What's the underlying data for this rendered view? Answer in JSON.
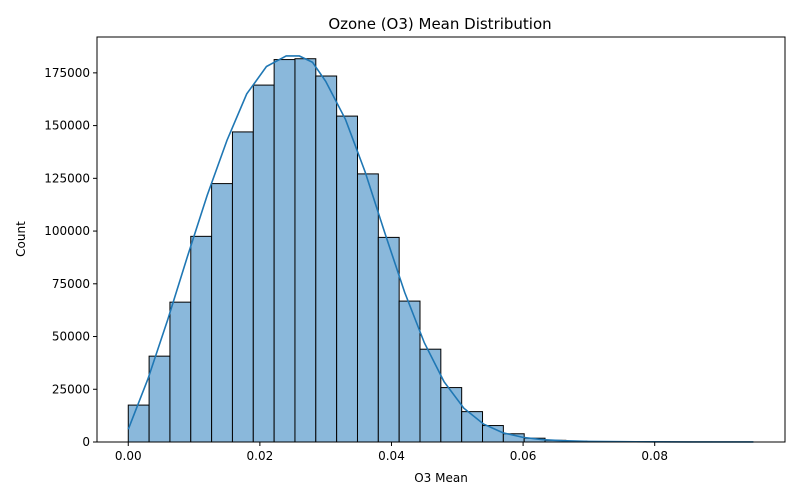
{
  "chart_data": {
    "type": "bar",
    "title": "Ozone (O3) Mean Distribution",
    "xlabel": "O3 Mean",
    "ylabel": "Count",
    "xlim": [
      -0.00475,
      0.0998
    ],
    "ylim": [
      0,
      192000
    ],
    "xticks": [
      0.0,
      0.02,
      0.04,
      0.06,
      0.08
    ],
    "xtick_labels": [
      "0.00",
      "0.02",
      "0.04",
      "0.06",
      "0.08"
    ],
    "yticks": [
      0,
      25000,
      50000,
      75000,
      100000,
      125000,
      150000,
      175000
    ],
    "ytick_labels": [
      "0",
      "25000",
      "50000",
      "75000",
      "100000",
      "125000",
      "150000",
      "175000"
    ],
    "bin_width": 0.003167,
    "bin_starts": [
      0.0,
      0.003167,
      0.006333,
      0.0095,
      0.012667,
      0.015833,
      0.019,
      0.022167,
      0.025333,
      0.0285,
      0.031667,
      0.034833,
      0.038,
      0.041167,
      0.044333,
      0.0475,
      0.050667,
      0.053833,
      0.057,
      0.060167,
      0.063333,
      0.0665,
      0.069667,
      0.072833,
      0.076,
      0.079167,
      0.082333,
      0.0855,
      0.088667,
      0.091833
    ],
    "values": [
      17500,
      40700,
      66300,
      97500,
      122500,
      147000,
      169200,
      181300,
      181700,
      173500,
      154500,
      127100,
      97000,
      66800,
      44000,
      25800,
      14400,
      7800,
      3900,
      1800,
      800,
      400,
      200,
      120,
      80,
      50,
      30,
      20,
      10,
      5
    ],
    "kde": {
      "x": [
        0.0,
        0.003,
        0.006,
        0.009,
        0.012,
        0.015,
        0.018,
        0.021,
        0.024,
        0.026,
        0.028,
        0.03,
        0.033,
        0.036,
        0.039,
        0.042,
        0.045,
        0.048,
        0.051,
        0.054,
        0.057,
        0.06,
        0.063,
        0.066,
        0.07,
        0.075,
        0.08,
        0.085,
        0.09,
        0.095
      ],
      "y": [
        6000,
        30000,
        58000,
        88000,
        117000,
        143000,
        165000,
        178000,
        183000,
        183000,
        180000,
        171000,
        153000,
        128000,
        99000,
        71000,
        47000,
        28500,
        16000,
        8500,
        4300,
        2200,
        1100,
        600,
        300,
        150,
        80,
        40,
        20,
        10
      ]
    },
    "grid": false,
    "legend": "none"
  }
}
